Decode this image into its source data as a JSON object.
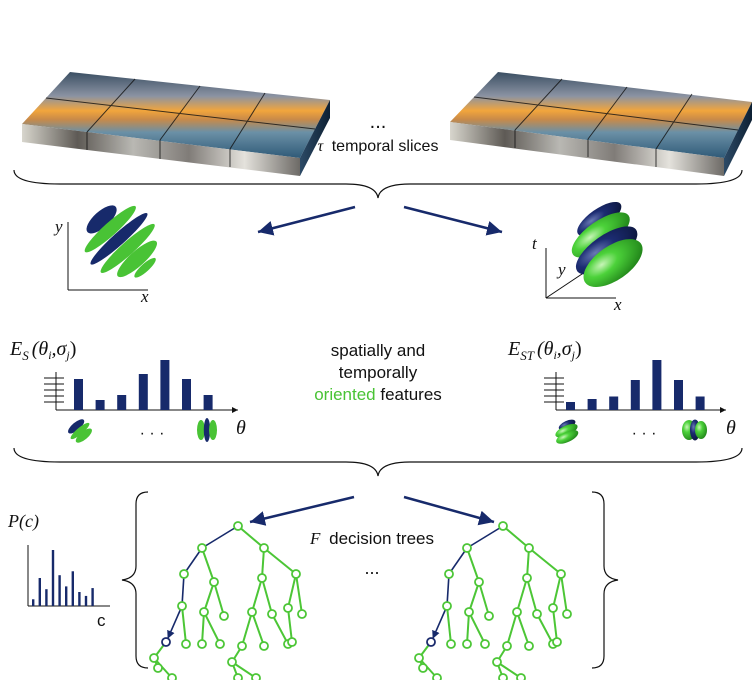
{
  "colors": {
    "navy": "#172a6b",
    "green": "#49c335",
    "tree_line": "#4cc636",
    "node_highlight": "#1a2a6c"
  },
  "top": {
    "ellipsis": "...",
    "caption_symbol": "τ",
    "caption_text": "temporal slices"
  },
  "spatial_plot": {
    "y_label": "y",
    "x_label": "x"
  },
  "spatiotemporal_plot": {
    "t_label": "t",
    "y_label": "y",
    "x_label": "x"
  },
  "hist_spatial": {
    "label_main": "E",
    "label_sub": "S",
    "label_args": "(θ",
    "label_i": "i",
    "label_sigma": ",σ",
    "label_j": "j",
    "label_close": ")",
    "axis_label": "θ",
    "dots": "· · ·",
    "values": [
      0.62,
      0.2,
      0.3,
      0.72,
      1.0,
      0.62,
      0.3
    ]
  },
  "hist_spatiotemporal": {
    "label_main": "E",
    "label_sub": "ST",
    "label_args": "(θ",
    "label_i": "i",
    "label_sigma": ",σ",
    "label_j": "j",
    "label_close": ")",
    "axis_label": "θ",
    "dots": "· · ·",
    "values": [
      0.16,
      0.22,
      0.27,
      0.6,
      1.0,
      0.6,
      0.27
    ]
  },
  "center_text": {
    "line1": "spatially and",
    "line2": "temporally",
    "line3_green": "oriented",
    "line3_rest": " features"
  },
  "prob_plot": {
    "label": "P(c)",
    "axis_label": "c",
    "values": [
      0.12,
      0.5,
      0.3,
      1.0,
      0.55,
      0.35,
      0.62,
      0.25,
      0.18,
      0.32
    ]
  },
  "trees": {
    "label_symbol": "F",
    "label_text": "decision trees",
    "ellipsis": "..."
  }
}
